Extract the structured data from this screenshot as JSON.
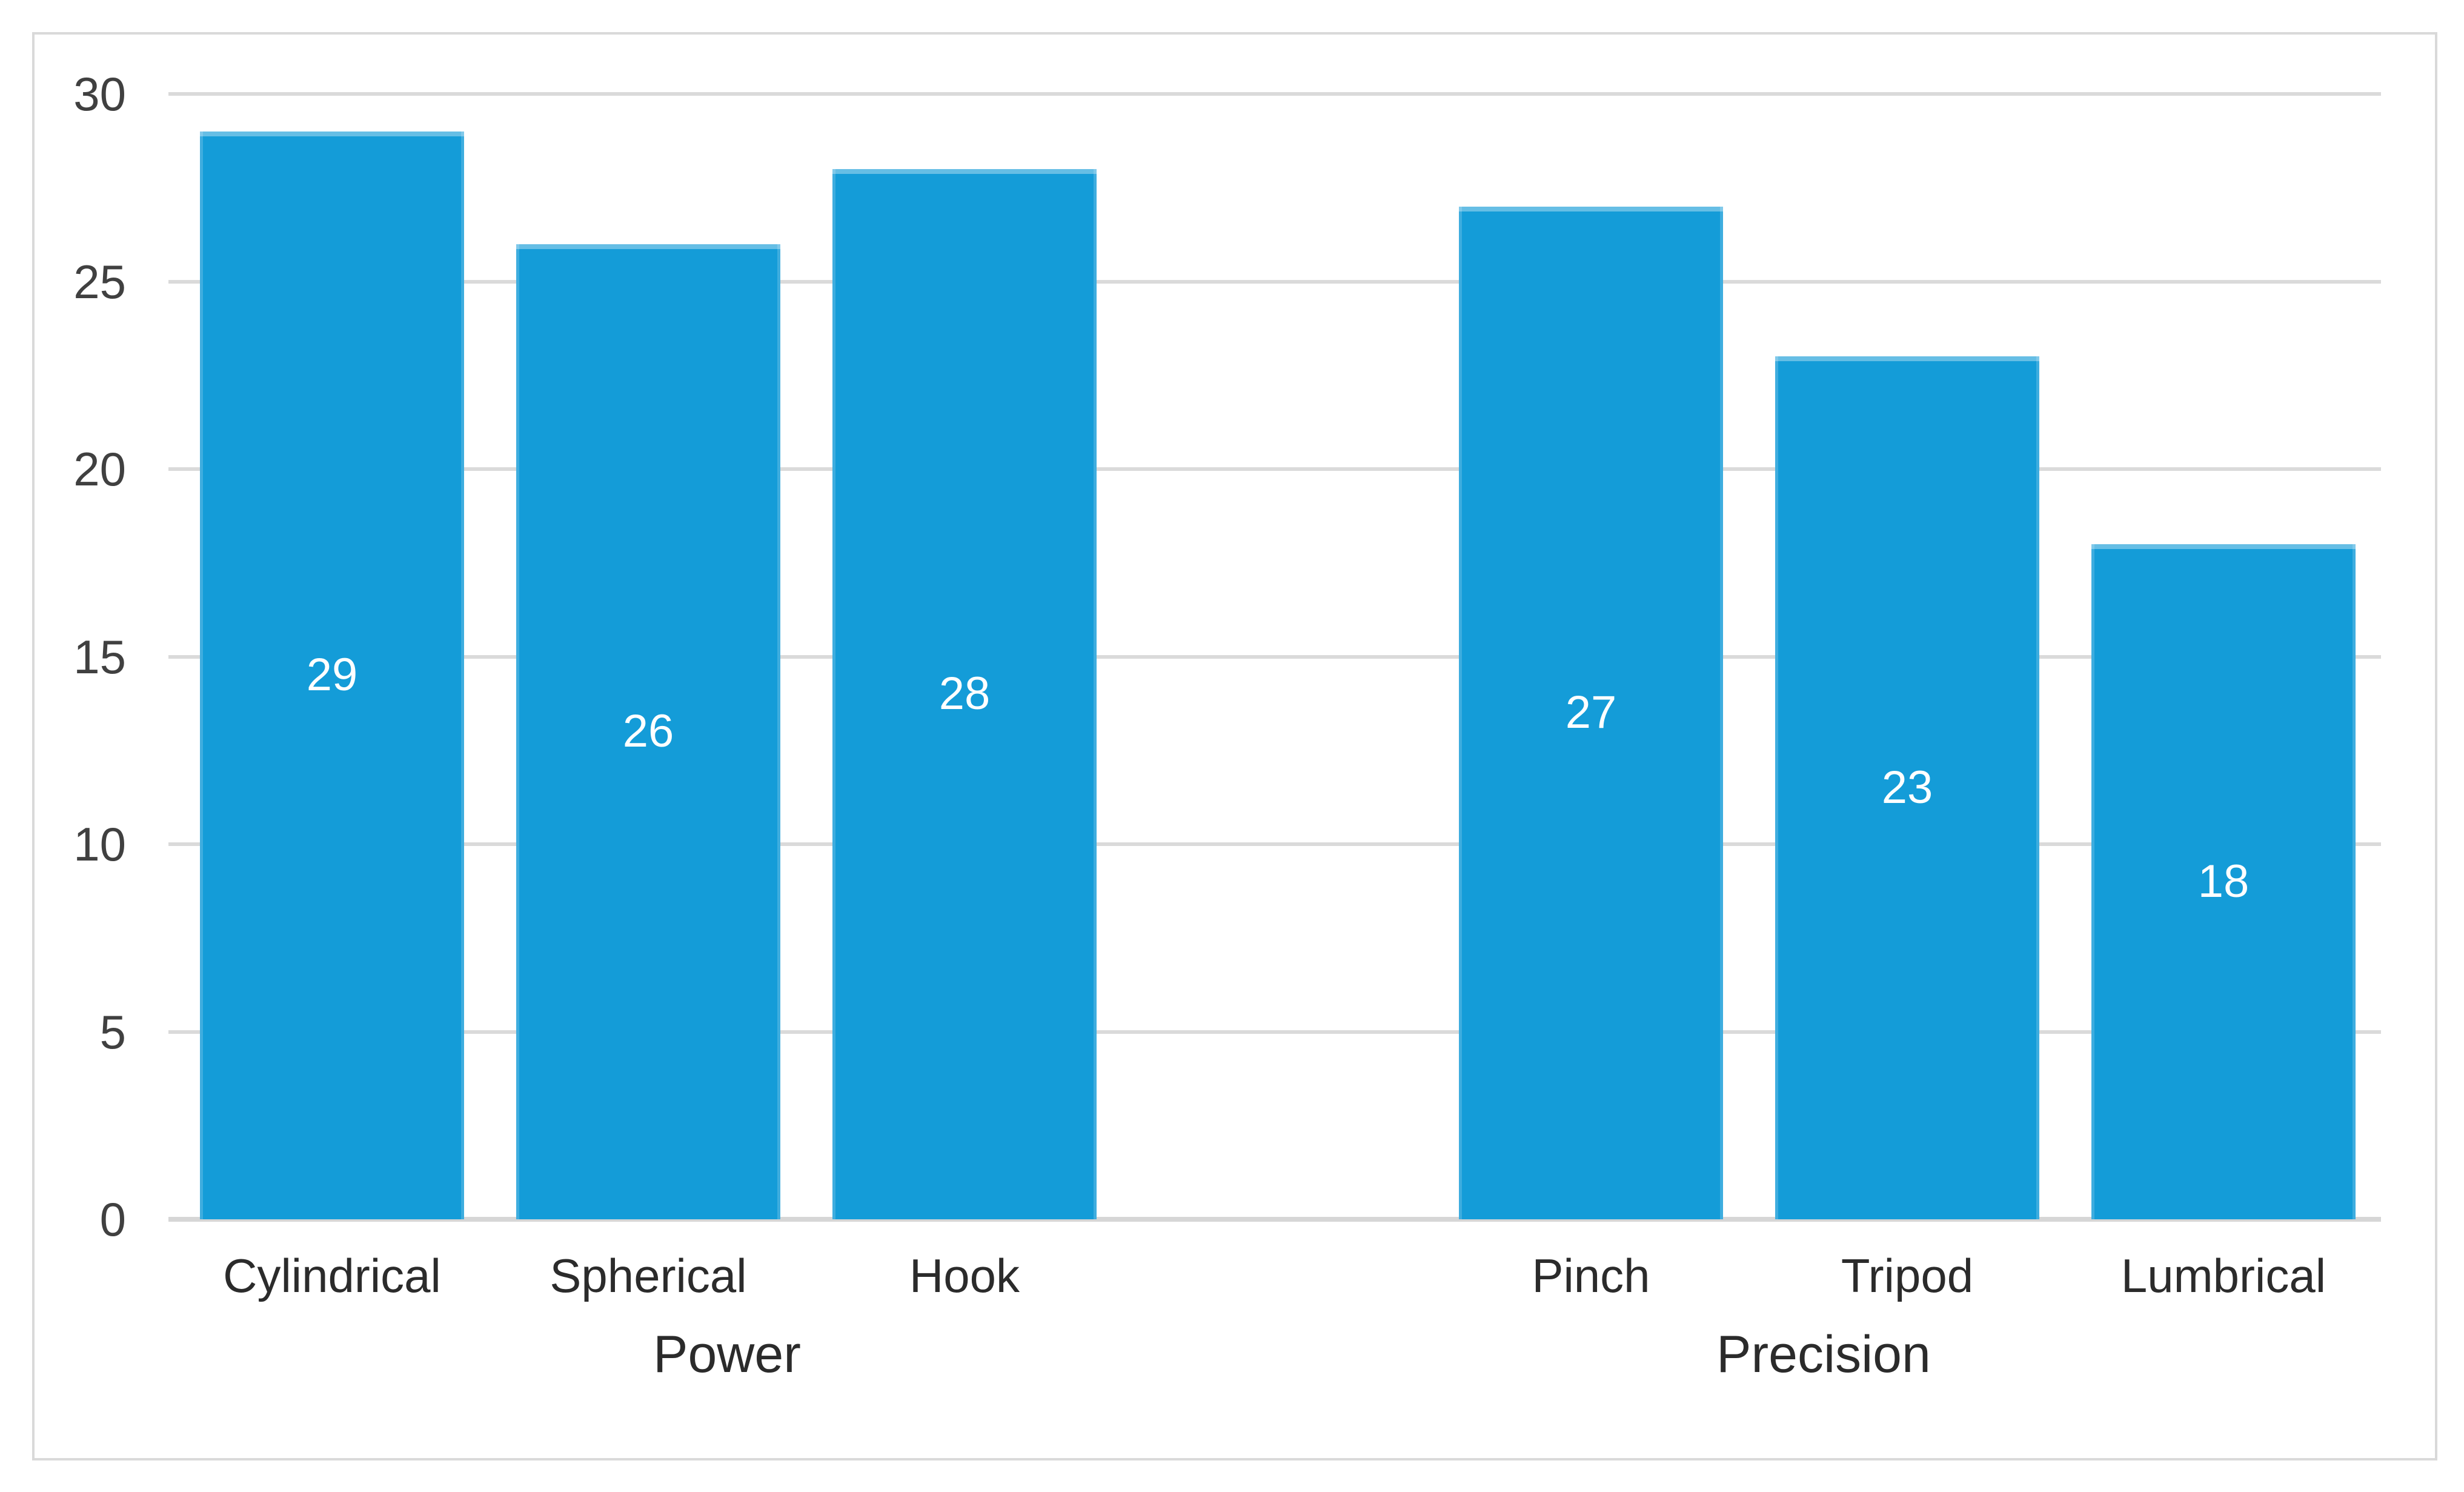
{
  "chart_data": {
    "type": "bar",
    "title": "",
    "xlabel": "",
    "ylabel": "",
    "legend": "none",
    "grid": "horizontal",
    "ylim": [
      0,
      30
    ],
    "y_ticks": [
      0,
      5,
      10,
      15,
      20,
      25,
      30
    ],
    "categories": [
      "Cylindrical",
      "Spherical",
      "Hook",
      "Pinch",
      "Tripod",
      "Lumbrical"
    ],
    "values": [
      29,
      26,
      28,
      27,
      23,
      18
    ],
    "groups": [
      {
        "label": "Power",
        "categories": [
          "Cylindrical",
          "Spherical",
          "Hook"
        ],
        "values": [
          29,
          26,
          28
        ]
      },
      {
        "label": "Precision",
        "categories": [
          "Pinch",
          "Tripod",
          "Lumbrical"
        ],
        "values": [
          27,
          23,
          18
        ]
      }
    ],
    "data_labels_visible": true,
    "colors": {
      "bar": "#149CD8",
      "gridline": "#DADADA",
      "axis_line": "#D6D6D6",
      "frame_border": "#D9D9D9",
      "tick_label": "#404040",
      "category_label": "#2B2B2B",
      "data_label": "#FFFFFF",
      "background": "#FFFFFF"
    }
  }
}
